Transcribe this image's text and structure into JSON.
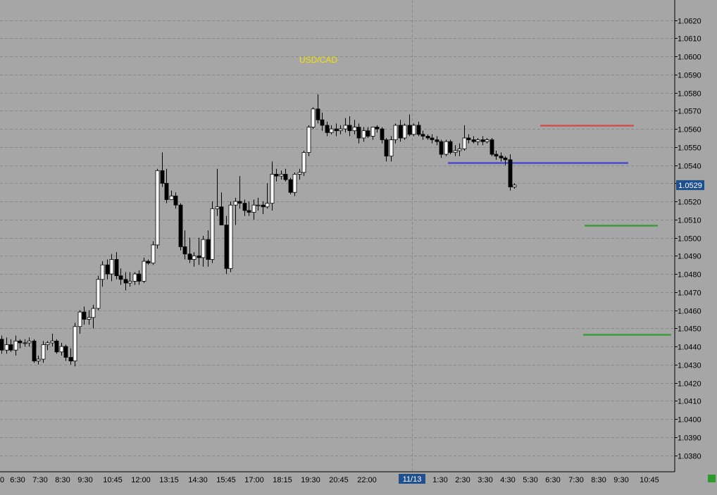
{
  "chart_data": {
    "type": "candlestick",
    "title": "USD/CAD",
    "y_axis": {
      "ticks": [
        "1.0620",
        "1.0610",
        "1.0600",
        "1.0590",
        "1.0580",
        "1.0570",
        "1.0560",
        "1.0550",
        "1.0540",
        "1.0530",
        "1.0520",
        "1.0510",
        "1.0500",
        "1.0490",
        "1.0480",
        "1.0470",
        "1.0460",
        "1.0450",
        "1.0440",
        "1.0430",
        "1.0420",
        "1.0410",
        "1.0400",
        "1.0390",
        "1.0380"
      ],
      "range": [
        1.0374,
        1.0628
      ],
      "position": "right"
    },
    "last_price": "1.0529",
    "x_axis": {
      "labels": [
        "0",
        "6:30",
        "7:30",
        "8:30",
        "9:30",
        "10:45",
        "12:00",
        "13:15",
        "14:30",
        "15:45",
        "17:00",
        "18:15",
        "19:30",
        "20:45",
        "22:00",
        "11/13",
        "1:30",
        "2:30",
        "3:30",
        "4:30",
        "5:30",
        "6:30",
        "7:30",
        "8:30",
        "9:30",
        "10:45"
      ],
      "highlighted_label": "11/13"
    },
    "grid": true,
    "candles": [
      [
        1.0444,
        1.0446,
        1.0436,
        1.0438
      ],
      [
        1.0438,
        1.0445,
        1.0436,
        1.0441
      ],
      [
        1.0441,
        1.0444,
        1.0437,
        1.0438
      ],
      [
        1.0438,
        1.0446,
        1.0435,
        1.0443
      ],
      [
        1.0443,
        1.0444,
        1.0439,
        1.0442
      ],
      [
        1.0442,
        1.0444,
        1.044,
        1.0442
      ],
      [
        1.0442,
        1.0445,
        1.044,
        1.0443
      ],
      [
        1.0443,
        1.0444,
        1.0431,
        1.0432
      ],
      [
        1.0432,
        1.0435,
        1.043,
        1.0433
      ],
      [
        1.0433,
        1.0443,
        1.0431,
        1.0441
      ],
      [
        1.0441,
        1.0443,
        1.0438,
        1.0442
      ],
      [
        1.0442,
        1.0447,
        1.044,
        1.0443
      ],
      [
        1.0443,
        1.0444,
        1.0436,
        1.0437
      ],
      [
        1.0437,
        1.0442,
        1.0435,
        1.044
      ],
      [
        1.044,
        1.0441,
        1.0432,
        1.0434
      ],
      [
        1.0434,
        1.0439,
        1.043,
        1.0432
      ],
      [
        1.0432,
        1.0453,
        1.0429,
        1.0451
      ],
      [
        1.0451,
        1.046,
        1.0447,
        1.0459
      ],
      [
        1.0459,
        1.0462,
        1.0452,
        1.0455
      ],
      [
        1.0455,
        1.046,
        1.0452,
        1.0456
      ],
      [
        1.0456,
        1.0463,
        1.045,
        1.0461
      ],
      [
        1.0461,
        1.0479,
        1.046,
        1.0477
      ],
      [
        1.0477,
        1.0487,
        1.0473,
        1.0485
      ],
      [
        1.0485,
        1.0488,
        1.0477,
        1.048
      ],
      [
        1.048,
        1.0491,
        1.0476,
        1.0488
      ],
      [
        1.0488,
        1.0492,
        1.0477,
        1.0479
      ],
      [
        1.0479,
        1.0483,
        1.0474,
        1.0477
      ],
      [
        1.0477,
        1.0481,
        1.0471,
        1.0475
      ],
      [
        1.0475,
        1.0481,
        1.0473,
        1.0476
      ],
      [
        1.0476,
        1.0481,
        1.0474,
        1.048
      ],
      [
        1.048,
        1.0482,
        1.0474,
        1.0476
      ],
      [
        1.0476,
        1.0489,
        1.0475,
        1.0487
      ],
      [
        1.0487,
        1.0488,
        1.0485,
        1.0486
      ],
      [
        1.0486,
        1.0498,
        1.0485,
        1.0496
      ],
      [
        1.0496,
        1.0538,
        1.0494,
        1.0537
      ],
      [
        1.0537,
        1.0547,
        1.0528,
        1.053
      ],
      [
        1.053,
        1.0538,
        1.0519,
        1.0521
      ],
      [
        1.0521,
        1.0526,
        1.0521,
        1.0523
      ],
      [
        1.0523,
        1.0525,
        1.0516,
        1.0518
      ],
      [
        1.0518,
        1.0519,
        1.0493,
        1.0495
      ],
      [
        1.0495,
        1.0504,
        1.0488,
        1.0491
      ],
      [
        1.0491,
        1.05,
        1.0486,
        1.0488
      ],
      [
        1.0488,
        1.0492,
        1.0484,
        1.049
      ],
      [
        1.049,
        1.05,
        1.0485,
        1.0489
      ],
      [
        1.0489,
        1.0501,
        1.0484,
        1.0499
      ],
      [
        1.0499,
        1.0504,
        1.0484,
        1.0488
      ],
      [
        1.0488,
        1.052,
        1.0486,
        1.0516
      ],
      [
        1.0516,
        1.0538,
        1.0512,
        1.0517
      ],
      [
        1.0517,
        1.0525,
        1.0507,
        1.0507
      ],
      [
        1.0507,
        1.0512,
        1.048,
        1.0483
      ],
      [
        1.0483,
        1.052,
        1.0481,
        1.0518
      ],
      [
        1.0518,
        1.0522,
        1.0507,
        1.052
      ],
      [
        1.052,
        1.0534,
        1.0516,
        1.0519
      ],
      [
        1.0519,
        1.0521,
        1.0512,
        1.0515
      ],
      [
        1.0515,
        1.052,
        1.0512,
        1.0514
      ],
      [
        1.0514,
        1.0521,
        1.051,
        1.0518
      ],
      [
        1.0518,
        1.0522,
        1.0515,
        1.0518
      ],
      [
        1.0518,
        1.052,
        1.0513,
        1.0517
      ],
      [
        1.0517,
        1.053,
        1.0516,
        1.0519
      ],
      [
        1.0519,
        1.0542,
        1.0515,
        1.0535
      ],
      [
        1.0535,
        1.0538,
        1.0531,
        1.0534
      ],
      [
        1.0534,
        1.0537,
        1.0532,
        1.0535
      ],
      [
        1.0535,
        1.0538,
        1.0531,
        1.0532
      ],
      [
        1.0532,
        1.0533,
        1.0524,
        1.0525
      ],
      [
        1.0525,
        1.0536,
        1.0523,
        1.0535
      ],
      [
        1.0535,
        1.0538,
        1.0532,
        1.0536
      ],
      [
        1.0536,
        1.0548,
        1.0534,
        1.0547
      ],
      [
        1.0547,
        1.0562,
        1.0545,
        1.0561
      ],
      [
        1.0561,
        1.0572,
        1.056,
        1.0571
      ],
      [
        1.0571,
        1.0579,
        1.0563,
        1.0565
      ],
      [
        1.0565,
        1.0569,
        1.0559,
        1.0562
      ],
      [
        1.0562,
        1.0564,
        1.0556,
        1.0558
      ],
      [
        1.0558,
        1.0562,
        1.0557,
        1.056
      ],
      [
        1.056,
        1.0563,
        1.0556,
        1.0559
      ],
      [
        1.0559,
        1.0562,
        1.0557,
        1.056
      ],
      [
        1.056,
        1.0566,
        1.0558,
        1.0562
      ],
      [
        1.0562,
        1.0567,
        1.0556,
        1.0559
      ],
      [
        1.0559,
        1.0565,
        1.0557,
        1.0561
      ],
      [
        1.0561,
        1.0563,
        1.0552,
        1.0555
      ],
      [
        1.0555,
        1.0561,
        1.0553,
        1.0559
      ],
      [
        1.0559,
        1.0561,
        1.0555,
        1.0556
      ],
      [
        1.0556,
        1.0561,
        1.0554,
        1.0561
      ],
      [
        1.0561,
        1.0562,
        1.0558,
        1.056
      ],
      [
        1.056,
        1.0561,
        1.0552,
        1.0554
      ],
      [
        1.0554,
        1.0555,
        1.0542,
        1.0545
      ],
      [
        1.0545,
        1.0556,
        1.0542,
        1.0554
      ],
      [
        1.0554,
        1.0563,
        1.0552,
        1.0562
      ],
      [
        1.0562,
        1.0565,
        1.0553,
        1.0555
      ],
      [
        1.0555,
        1.0563,
        1.0554,
        1.0562
      ],
      [
        1.0562,
        1.0568,
        1.0556,
        1.0557
      ],
      [
        1.0557,
        1.0563,
        1.0556,
        1.0562
      ],
      [
        1.0562,
        1.0564,
        1.0556,
        1.0557
      ],
      [
        1.0557,
        1.0559,
        1.0554,
        1.0556
      ],
      [
        1.0556,
        1.0557,
        1.0554,
        1.0555
      ],
      [
        1.0555,
        1.0557,
        1.0552,
        1.0554
      ],
      [
        1.0554,
        1.0556,
        1.0551,
        1.0553
      ],
      [
        1.0553,
        1.0554,
        1.0544,
        1.0546
      ],
      [
        1.0546,
        1.0554,
        1.0545,
        1.0553
      ],
      [
        1.0553,
        1.0554,
        1.0546,
        1.0547
      ],
      [
        1.0547,
        1.0551,
        1.0545,
        1.0548
      ],
      [
        1.0548,
        1.0552,
        1.0545,
        1.0549
      ],
      [
        1.0549,
        1.0562,
        1.0548,
        1.0555
      ],
      [
        1.0555,
        1.0557,
        1.0552,
        1.0554
      ],
      [
        1.0554,
        1.0556,
        1.0552,
        1.0553
      ],
      [
        1.0553,
        1.0555,
        1.0551,
        1.0554
      ],
      [
        1.0554,
        1.0556,
        1.0551,
        1.0553
      ],
      [
        1.0553,
        1.0555,
        1.0552,
        1.0554
      ],
      [
        1.0554,
        1.0555,
        1.0545,
        1.0546
      ],
      [
        1.0546,
        1.0548,
        1.0543,
        1.0545
      ],
      [
        1.0545,
        1.0547,
        1.0542,
        1.0544
      ],
      [
        1.0544,
        1.0545,
        1.054,
        1.0543
      ],
      [
        1.0543,
        1.0546,
        1.0526,
        1.0528
      ],
      [
        1.0528,
        1.053,
        1.0527,
        1.0529
      ]
    ],
    "levels": [
      {
        "color": "#d05050",
        "from_index": 99,
        "to_index": 125,
        "price": 1.0562
      },
      {
        "color": "#4a4ad0",
        "from_index": 80,
        "to_index": 123,
        "price": 1.05415
      },
      {
        "color": "#3f9c3f",
        "from_index": 110,
        "to_index": 129,
        "price": 1.0507
      },
      {
        "color": "#3f9c3f",
        "from_index": 110,
        "to_index": 132,
        "price": 1.04466
      }
    ],
    "colors": {
      "background": "#a6a6a6",
      "grid": "#888888",
      "up_candle": "#ffffff",
      "down_candle": "#000000",
      "title": "#f2e200",
      "axis_text": "#000000",
      "price_tag_bg": "#1e4f8f",
      "price_tag_text": "#ffffff"
    }
  }
}
